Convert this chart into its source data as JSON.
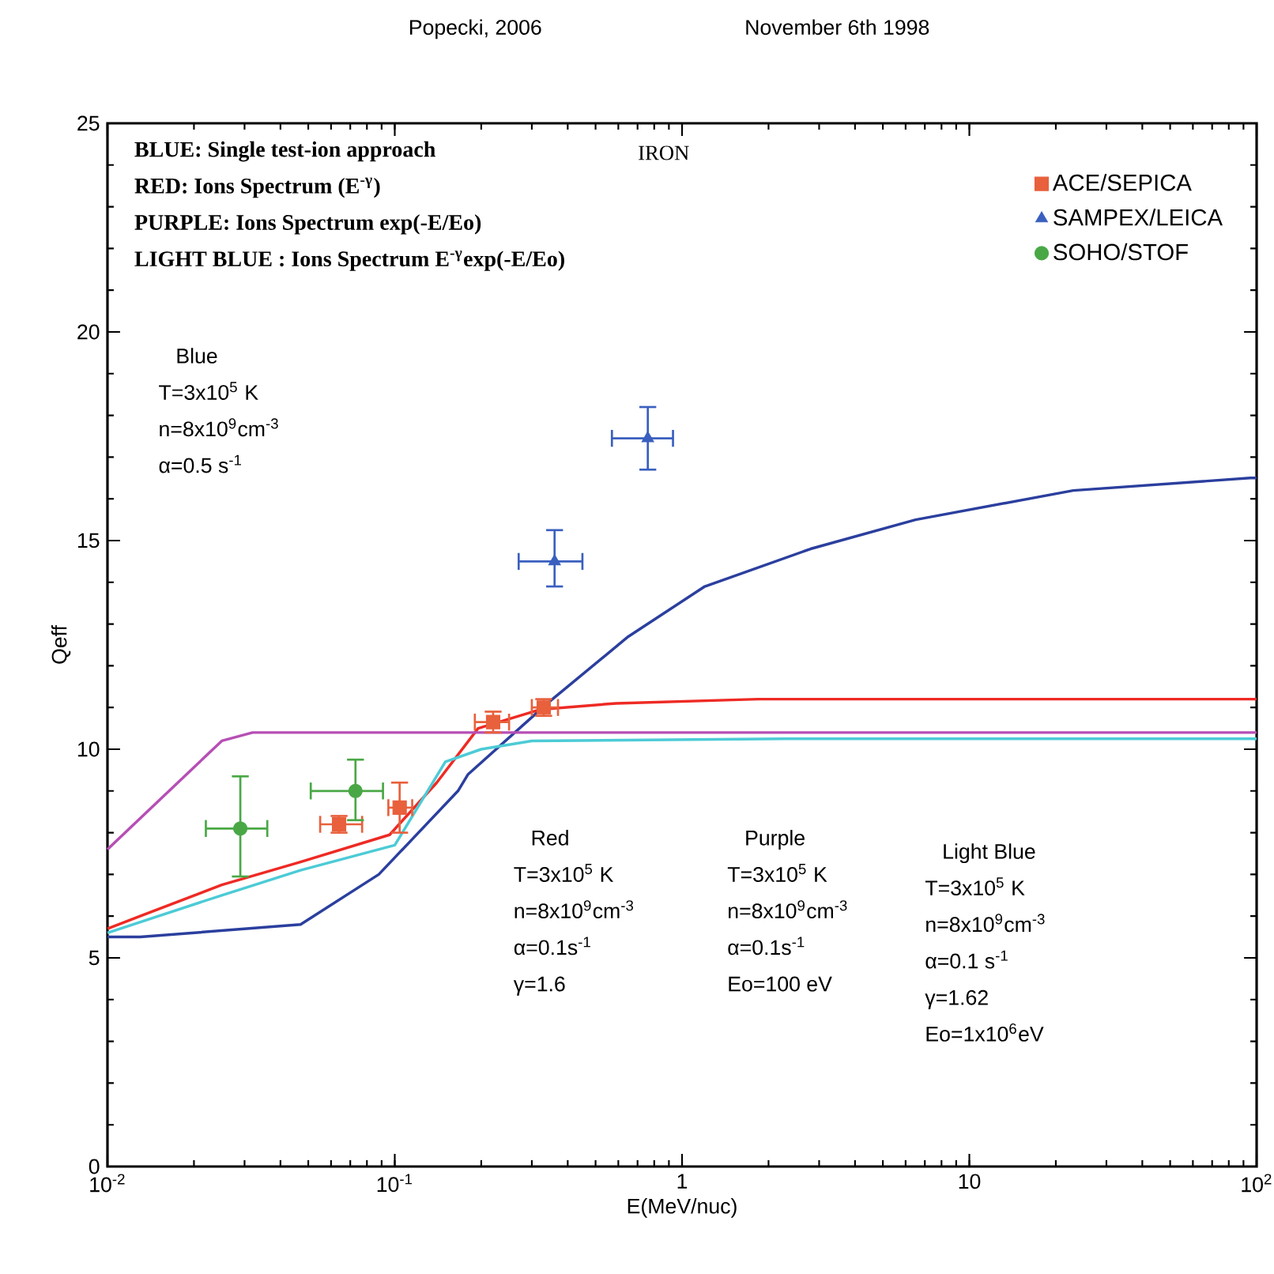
{
  "chart_data": {
    "type": "line",
    "title": "November 6th 1998",
    "xlabel": "E(MeV/nuc)",
    "ylabel": "Qeff",
    "log": "x",
    "xlim": [
      0.01,
      100
    ],
    "ylim": [
      0,
      25
    ],
    "xticks": [
      {
        "value": 0.01,
        "label": "10$^{-2}$"
      },
      {
        "value": 0.1,
        "label": "10$^{-1}$"
      },
      {
        "value": 1,
        "label": "1"
      },
      {
        "value": 10,
        "label": "10"
      },
      {
        "value": 100,
        "label": "10$^{2}$"
      }
    ],
    "yticks": [
      0,
      5,
      10,
      15,
      20,
      25
    ],
    "grid": false,
    "legend": "top right",
    "series": [
      {
        "color": "#2b3f9e",
        "x": [
          0.01,
          0.013,
          0.047,
          0.088,
          0.166,
          0.18,
          0.34,
          0.65,
          1.2,
          2.8,
          6.5,
          23,
          95,
          100
        ],
        "values": [
          5.5,
          5.5,
          5.8,
          7.0,
          9.0,
          9.4,
          11.1,
          12.7,
          13.9,
          14.8,
          15.5,
          16.2,
          16.5,
          16.5
        ]
      },
      {
        "color": "#ee2a24",
        "x": [
          0.01,
          0.013,
          0.025,
          0.047,
          0.096,
          0.14,
          0.195,
          0.32,
          0.59,
          1.84,
          100
        ],
        "values": [
          5.7,
          6.0,
          6.75,
          7.3,
          7.95,
          9.2,
          10.5,
          10.95,
          11.1,
          11.2,
          11.2
        ]
      },
      {
        "color": "#b64fb5",
        "x": [
          0.01,
          0.025,
          0.032,
          100
        ],
        "values": [
          7.6,
          10.2,
          10.4,
          10.4
        ]
      },
      {
        "color": "#4ccbd6",
        "x": [
          0.01,
          0.025,
          0.047,
          0.1,
          0.15,
          0.2,
          0.3,
          2.3,
          100
        ],
        "values": [
          5.6,
          6.5,
          7.1,
          7.7,
          9.7,
          10.0,
          10.2,
          10.25,
          10.25
        ]
      },
      {
        "type": "scatter",
        "name": "ACE/SEPICA",
        "color": "#e8603c",
        "marker": "square",
        "x": [
          0.064,
          0.104,
          0.22,
          0.33
        ],
        "values": [
          8.2,
          8.6,
          10.65,
          11.0
        ],
        "xerrors": [
          [
            0.055,
            0.077
          ],
          [
            0.095,
            0.115
          ],
          [
            0.19,
            0.25
          ],
          [
            0.3,
            0.37
          ]
        ],
        "errors": [
          [
            8.0,
            8.4
          ],
          [
            8.0,
            9.2
          ],
          [
            10.4,
            10.9
          ],
          [
            10.8,
            11.2
          ]
        ]
      },
      {
        "type": "scatter",
        "name": "SAMPEX/LEICA",
        "color": "#3a5fbf",
        "marker": "triangle",
        "x": [
          0.36,
          0.76
        ],
        "values": [
          14.5,
          17.45
        ],
        "xerrors": [
          [
            0.27,
            0.45
          ],
          [
            0.57,
            0.93
          ]
        ],
        "errors": [
          [
            13.9,
            15.25
          ],
          [
            16.7,
            18.2
          ]
        ]
      },
      {
        "type": "scatter",
        "name": "SOHO/STOF",
        "color": "#49a845",
        "marker": "circle",
        "x": [
          0.029,
          0.073
        ],
        "values": [
          8.1,
          9.0
        ],
        "xerrors": [
          [
            0.022,
            0.036
          ],
          [
            0.051,
            0.091
          ]
        ],
        "errors": [
          [
            6.95,
            9.35
          ],
          [
            8.3,
            9.75
          ]
        ]
      }
    ],
    "annotations": [
      "Popecki, 2006",
      "BLUE:  Single test-ion approach",
      "RED: Ions Spectrum (E$^{-γ}$)",
      "PURPLE: Ions Spectrum    exp(-E/Eo)",
      "LIGHT BLUE : Ions Spectrum E$^{-γ}$exp(-E/Eo)",
      "IRON",
      "Blue",
      "T=3x10$^{5}$ K",
      "n=8x10$^{9}$cm$^{-3}$",
      "α=0.5 s$^{-1}$",
      "Red",
      "T=3x10$^{5}$ K",
      "n=8x10$^{9}$cm$^{-3}$",
      "α=0.1s$^{-1}$",
      "γ=1.6",
      "Purple",
      "T=3x10$^{5}$ K",
      "n=8x10$^{9}$cm$^{-3}$",
      "α=0.1s$^{-1}$",
      "Eo=100 eV",
      "Light Blue",
      "T=3x10$^{5}$ K",
      "n=8x10$^{9}$cm$^{-3}$",
      "α=0.1 s$^{-1}$",
      "γ=1.62",
      "Eo=1x10$^{6}$eV"
    ]
  }
}
